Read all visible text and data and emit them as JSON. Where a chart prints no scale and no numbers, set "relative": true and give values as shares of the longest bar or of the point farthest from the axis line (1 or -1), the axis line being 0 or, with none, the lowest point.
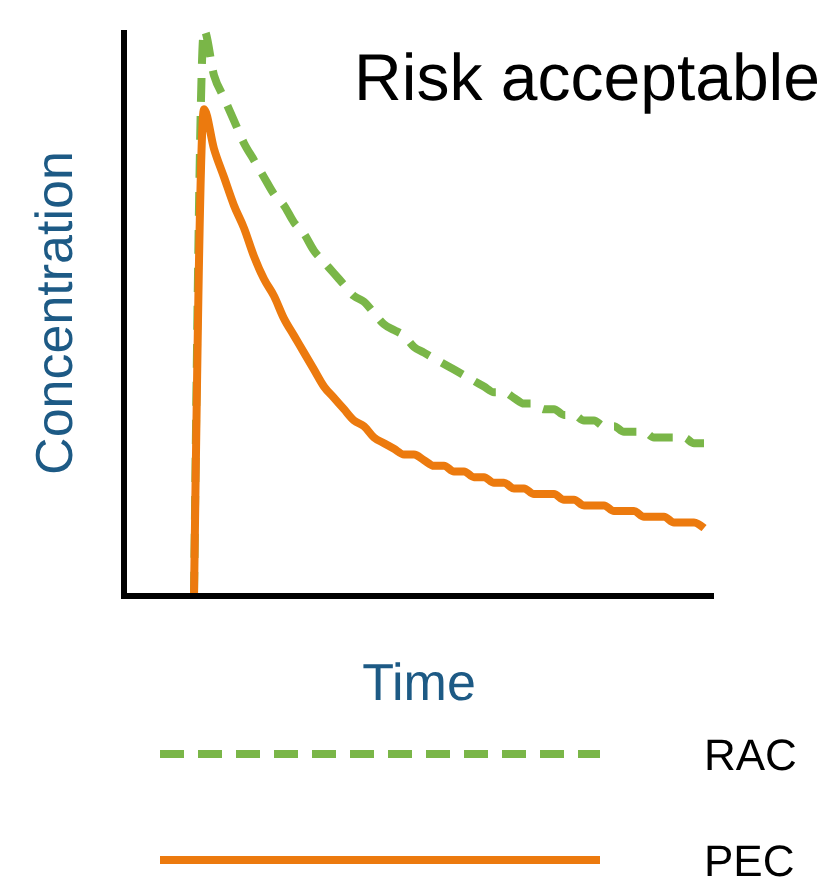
{
  "chart_data": {
    "type": "line",
    "title": "Risk acceptable",
    "xlabel": "Time",
    "ylabel": "Concentration",
    "relative": true,
    "legend": "bottom",
    "categories": [
      null,
      null,
      null,
      null,
      null,
      null,
      null,
      null,
      null,
      null,
      null,
      null,
      null,
      null,
      null,
      null,
      null,
      null,
      null,
      null,
      null,
      null,
      null,
      null,
      null,
      null,
      null,
      null,
      null,
      null,
      null,
      null,
      null,
      null,
      null,
      null,
      null,
      null,
      null,
      null,
      null,
      null,
      null,
      null,
      null,
      null,
      null,
      null,
      null,
      null,
      null,
      null
    ],
    "series": [
      {
        "name": "RAC",
        "color": "#7ab648",
        "line_style": "dashed",
        "values": [
          0,
          1.0,
          0.92,
          0.88,
          0.84,
          0.8,
          0.77,
          0.74,
          0.71,
          0.69,
          0.66,
          0.64,
          0.61,
          0.59,
          0.57,
          0.55,
          0.53,
          0.52,
          0.5,
          0.48,
          0.47,
          0.46,
          0.44,
          0.43,
          0.42,
          0.41,
          0.4,
          0.39,
          0.38,
          0.37,
          0.36,
          0.36,
          0.35,
          0.34,
          0.34,
          0.33,
          0.33,
          0.32,
          0.32,
          0.31,
          0.31,
          0.3,
          0.3,
          0.29,
          0.29,
          0.29,
          0.28,
          0.28,
          0.28,
          0.28,
          0.27,
          0.27
        ]
      },
      {
        "name": "PEC",
        "color": "#ec7a0e",
        "line_style": "solid",
        "values": [
          0,
          0.86,
          0.79,
          0.74,
          0.69,
          0.65,
          0.6,
          0.56,
          0.53,
          0.49,
          0.46,
          0.43,
          0.4,
          0.37,
          0.35,
          0.33,
          0.31,
          0.3,
          0.28,
          0.27,
          0.26,
          0.25,
          0.25,
          0.24,
          0.23,
          0.23,
          0.22,
          0.22,
          0.21,
          0.21,
          0.2,
          0.2,
          0.19,
          0.19,
          0.18,
          0.18,
          0.18,
          0.17,
          0.17,
          0.16,
          0.16,
          0.16,
          0.15,
          0.15,
          0.15,
          0.14,
          0.14,
          0.14,
          0.13,
          0.13,
          0.13,
          0.12
        ]
      }
    ]
  }
}
